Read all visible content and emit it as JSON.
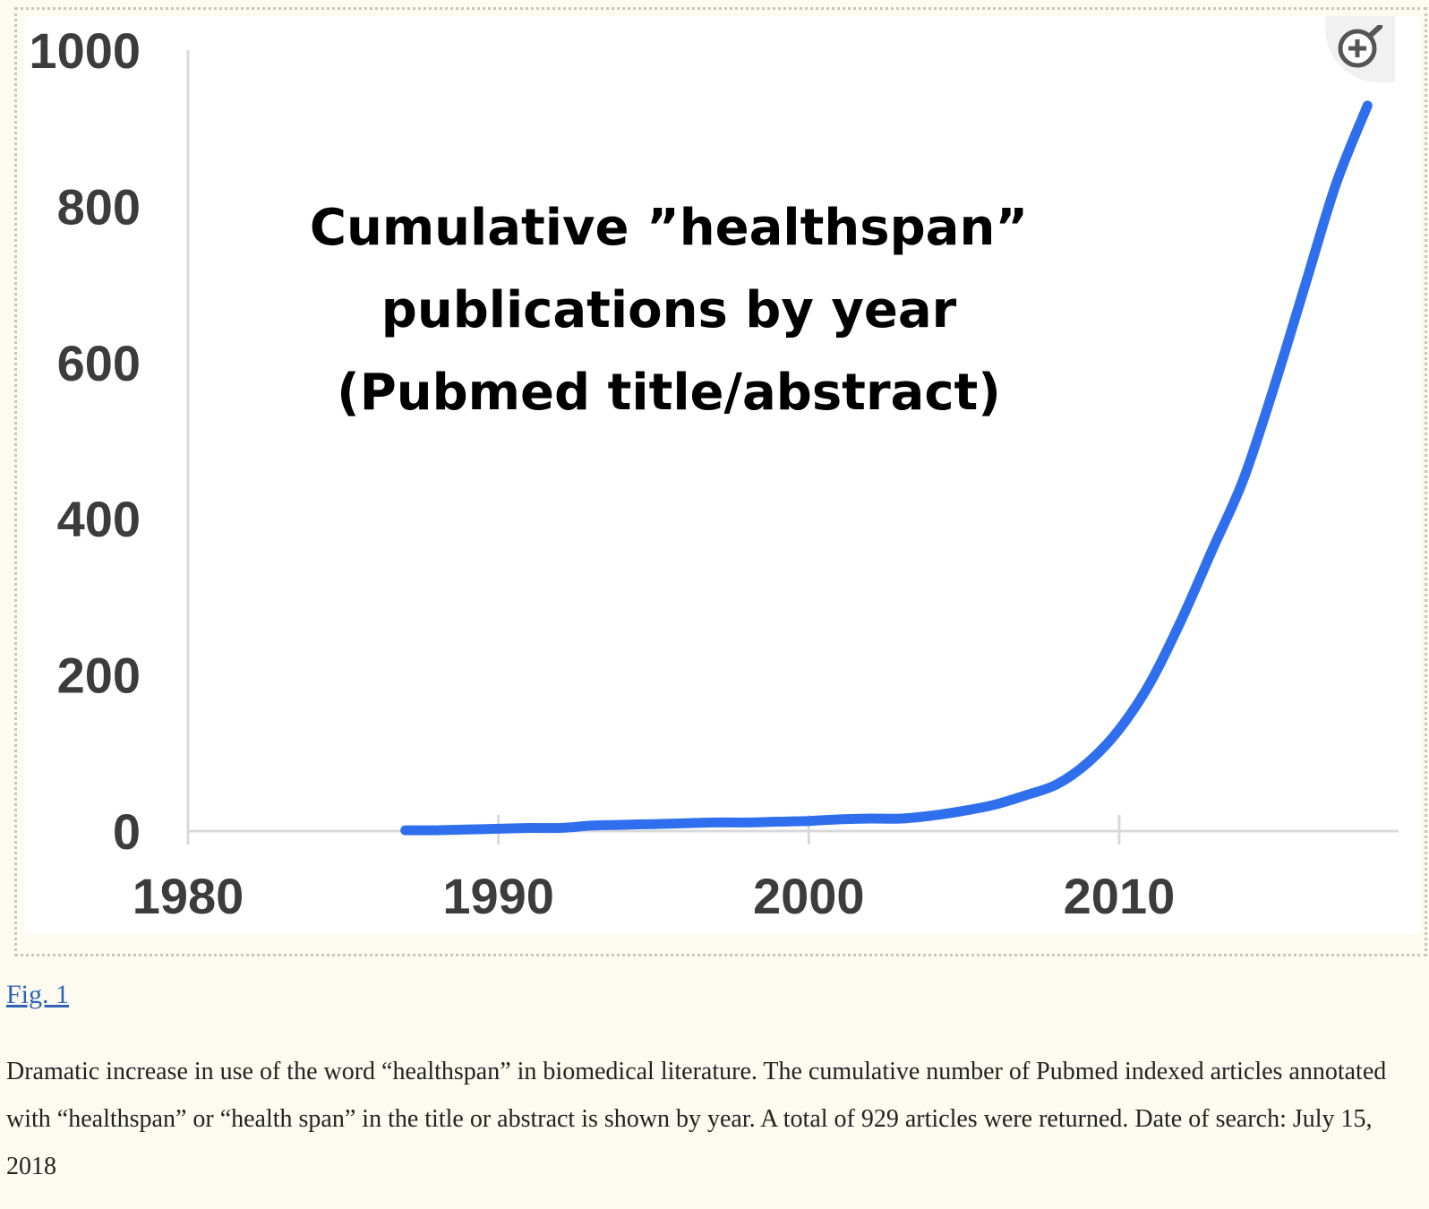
{
  "figure": {
    "link_label": "Fig. 1",
    "caption": "Dramatic increase in use of the word “healthspan” in biomedical literature. The cumulative number of Pubmed indexed articles annotated with “healthspan” or “health span” in the title or abstract is shown by year. A total of 929 articles were returned. Date of search: July 15, 2018",
    "zoom_icon": "zoom-in-icon"
  },
  "chart_data": {
    "type": "line",
    "title": [
      "Cumulative ”healthspan”",
      "publications by year",
      "(Pubmed title/abstract)"
    ],
    "xlabel": "",
    "ylabel": "",
    "xlim": [
      1980,
      2018.8
    ],
    "ylim": [
      0,
      1000
    ],
    "x_ticks": [
      1980,
      1990,
      2000,
      2010
    ],
    "y_ticks": [
      0,
      200,
      400,
      600,
      800,
      1000
    ],
    "grid": false,
    "line_color": "#2f6fee",
    "axis_color": "#d9d9d9",
    "series": [
      {
        "x": [
          1987,
          1988,
          1989,
          1990,
          1991,
          1992,
          1993,
          1994,
          1995,
          1996,
          1997,
          1998,
          1999,
          2000,
          2001,
          2002,
          2003,
          2004,
          2005,
          2006,
          2007,
          2008,
          2009,
          2010,
          2011,
          2012,
          2013,
          2014,
          2015,
          2016,
          2017,
          2018
        ],
        "y": [
          1,
          1,
          2,
          3,
          4,
          4,
          7,
          8,
          9,
          10,
          11,
          11,
          12,
          13,
          15,
          16,
          16,
          20,
          26,
          34,
          46,
          60,
          88,
          130,
          190,
          270,
          360,
          450,
          570,
          700,
          830,
          929
        ]
      }
    ]
  }
}
